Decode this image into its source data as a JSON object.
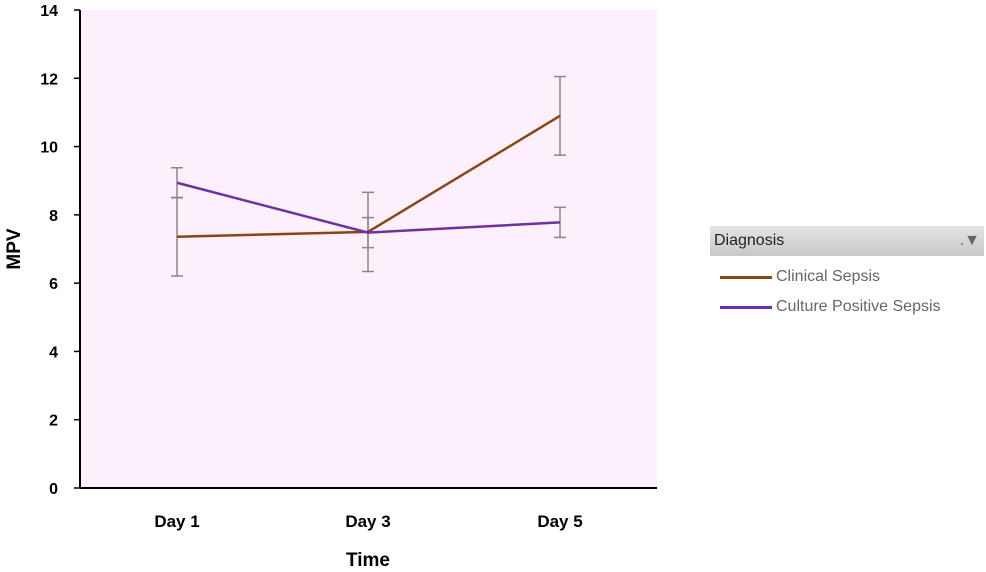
{
  "chart_data": {
    "type": "line",
    "title": "",
    "xlabel": "Time",
    "ylabel": "MPV",
    "categories": [
      "Day 1",
      "Day 3",
      "Day 5"
    ],
    "ylim": [
      0,
      14
    ],
    "yticks": [
      0,
      2,
      4,
      6,
      8,
      10,
      12,
      14
    ],
    "grid": false,
    "background": "#fdf0fd",
    "legend_position": "right",
    "legend_title": "Diagnosis",
    "series": [
      {
        "name": "Clinical Sepsis",
        "color": "#8b4513",
        "values": [
          7.36,
          7.5,
          10.9
        ],
        "error": [
          1.15,
          1.16,
          1.15
        ]
      },
      {
        "name": "Culture Positive Sepsis",
        "color": "#7030a0",
        "values": [
          8.94,
          7.48,
          7.78
        ],
        "error": [
          0.44,
          0.44,
          0.44
        ]
      }
    ]
  },
  "legend_filter_icon": "filter-icon"
}
